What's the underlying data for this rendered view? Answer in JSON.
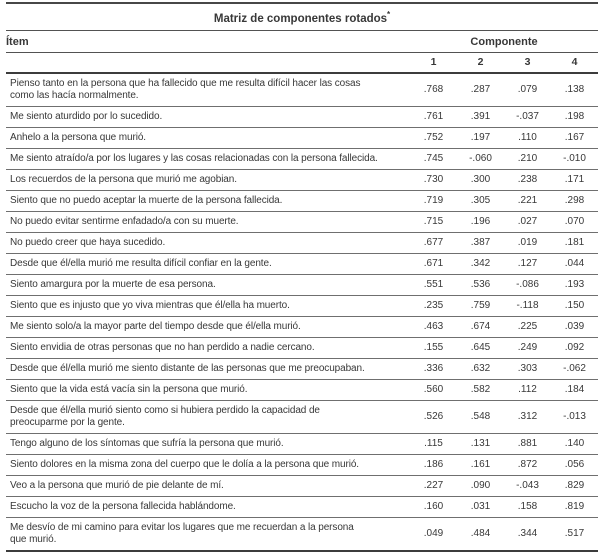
{
  "title": {
    "text": "Matriz de componentes rotados",
    "superscript": "*"
  },
  "columns": {
    "item_header": "Ítem",
    "group_header": "Componente",
    "component_numbers": [
      "1",
      "2",
      "3",
      "4"
    ]
  },
  "rows": [
    {
      "item": "Pienso tanto en la persona que ha fallecido que me resulta difícil hacer las cosas\ncomo las hacía normalmente.",
      "values": [
        ".768",
        ".287",
        ".079",
        ".138"
      ]
    },
    {
      "item": "Me siento aturdido por lo sucedido.",
      "values": [
        ".761",
        ".391",
        "-.037",
        ".198"
      ]
    },
    {
      "item": "Anhelo a la persona que murió.",
      "values": [
        ".752",
        ".197",
        ".110",
        ".167"
      ]
    },
    {
      "item": "Me siento atraído/a por los lugares y las cosas relacionadas con la persona fallecida.",
      "values": [
        ".745",
        "-.060",
        ".210",
        "-.010"
      ]
    },
    {
      "item": "Los recuerdos de la persona que murió me agobian.",
      "values": [
        ".730",
        ".300",
        ".238",
        ".171"
      ]
    },
    {
      "item": "Siento que no puedo aceptar la muerte de la persona fallecida.",
      "values": [
        ".719",
        ".305",
        ".221",
        ".298"
      ]
    },
    {
      "item": "No puedo evitar sentirme enfadado/a con su muerte.",
      "values": [
        ".715",
        ".196",
        ".027",
        ".070"
      ]
    },
    {
      "item": "No puedo creer que haya sucedido.",
      "values": [
        ".677",
        ".387",
        ".019",
        ".181"
      ]
    },
    {
      "item": "Desde que él/ella murió me resulta difícil confiar en la gente.",
      "values": [
        ".671",
        ".342",
        ".127",
        ".044"
      ]
    },
    {
      "item": "Siento amargura por la muerte de esa persona.",
      "values": [
        ".551",
        ".536",
        "-.086",
        ".193"
      ]
    },
    {
      "item": "Siento que es injusto que yo viva mientras que él/ella ha muerto.",
      "values": [
        ".235",
        ".759",
        "-.118",
        ".150"
      ]
    },
    {
      "item": "Me siento solo/a la mayor parte del tiempo desde que él/ella murió.",
      "values": [
        ".463",
        ".674",
        ".225",
        ".039"
      ]
    },
    {
      "item": "Siento envidia de otras personas que no han perdido a nadie cercano.",
      "values": [
        ".155",
        ".645",
        ".249",
        ".092"
      ]
    },
    {
      "item": "Desde que él/ella murió me siento distante de las personas que me preocupaban.",
      "values": [
        ".336",
        ".632",
        ".303",
        "-.062"
      ]
    },
    {
      "item": "Siento que la vida está vacía sin la persona que murió.",
      "values": [
        ".560",
        ".582",
        ".112",
        ".184"
      ]
    },
    {
      "item": "Desde que él/ella murió siento como si hubiera perdido la capacidad de\npreocuparme por la gente.",
      "values": [
        ".526",
        ".548",
        ".312",
        "-.013"
      ]
    },
    {
      "item": "Tengo alguno de los síntomas que sufría la persona que murió.",
      "values": [
        ".115",
        ".131",
        ".881",
        ".140"
      ]
    },
    {
      "item": "Siento dolores en la misma zona del cuerpo que le dolía a la persona que murió.",
      "values": [
        ".186",
        ".161",
        ".872",
        ".056"
      ]
    },
    {
      "item": "Veo a la persona que murió de pie delante de mí.",
      "values": [
        ".227",
        ".090",
        "-.043",
        ".829"
      ]
    },
    {
      "item": "Escucho la voz de la persona fallecida hablándome.",
      "values": [
        ".160",
        ".031",
        ".158",
        ".819"
      ]
    },
    {
      "item": "Me desvío de mi camino para evitar los lugares que me recuerdan a la persona\nque murió.",
      "values": [
        ".049",
        ".484",
        ".344",
        ".517"
      ]
    }
  ],
  "colors": {
    "text": "#383838",
    "rule_strong": "#3c3c3c",
    "rule_medium": "#525252",
    "rule_light": "#6f6f6f",
    "background": "#ffffff"
  }
}
